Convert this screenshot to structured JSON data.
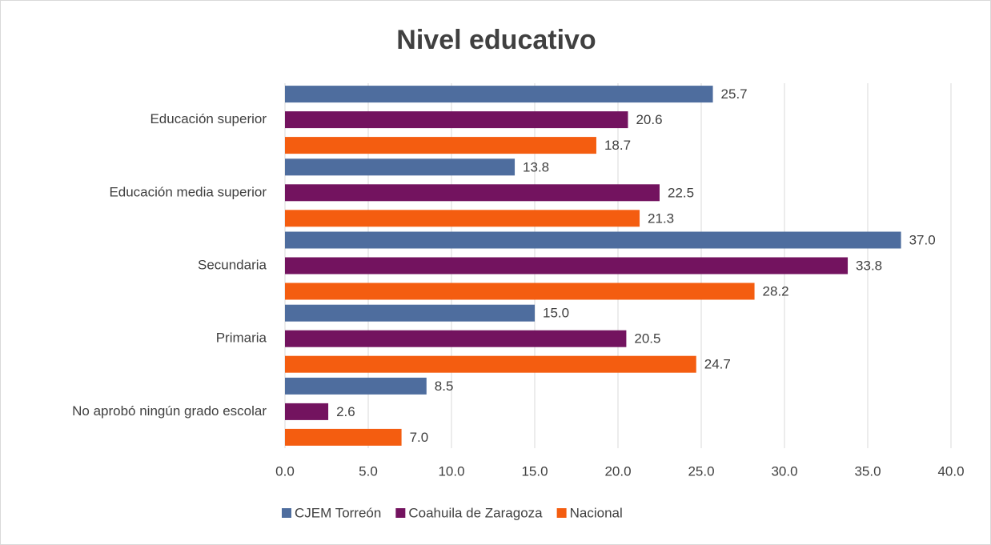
{
  "chart_data": {
    "type": "hbar",
    "title": "Nivel educativo",
    "categories": [
      "Educación superior",
      "Educación media superior",
      "Secundaria",
      "Primaria",
      "No aprobó ningún grado escolar"
    ],
    "series": [
      {
        "name": "CJEM Torreón",
        "color": "#4e6d9e",
        "values": [
          25.7,
          13.8,
          37.0,
          15.0,
          8.5
        ],
        "value_labels": [
          "25.7",
          "13.8",
          "37.0",
          "15.0",
          "8.5"
        ]
      },
      {
        "name": "Coahuila de Zaragoza",
        "color": "#73135f",
        "values": [
          20.6,
          22.5,
          33.8,
          20.5,
          2.6
        ],
        "value_labels": [
          "20.6",
          "22.5",
          "33.8",
          "20.5",
          "2.6"
        ]
      },
      {
        "name": "Nacional",
        "color": "#f45d10",
        "values": [
          18.7,
          21.3,
          28.2,
          24.7,
          7.0
        ],
        "value_labels": [
          "18.7",
          "21.3",
          "28.2",
          "24.7",
          "7.0"
        ]
      }
    ],
    "xlim": [
      0,
      40
    ],
    "xticks": [
      {
        "value": 0,
        "label": "0.0"
      },
      {
        "value": 5,
        "label": "5.0"
      },
      {
        "value": 10,
        "label": "10.0"
      },
      {
        "value": 15,
        "label": "15.0"
      },
      {
        "value": 20,
        "label": "20.0"
      },
      {
        "value": 25,
        "label": "25.0"
      },
      {
        "value": 30,
        "label": "30.0"
      },
      {
        "value": 35,
        "label": "35.0"
      },
      {
        "value": 40,
        "label": "40.0"
      }
    ],
    "grid": true,
    "legend": "bottom"
  }
}
